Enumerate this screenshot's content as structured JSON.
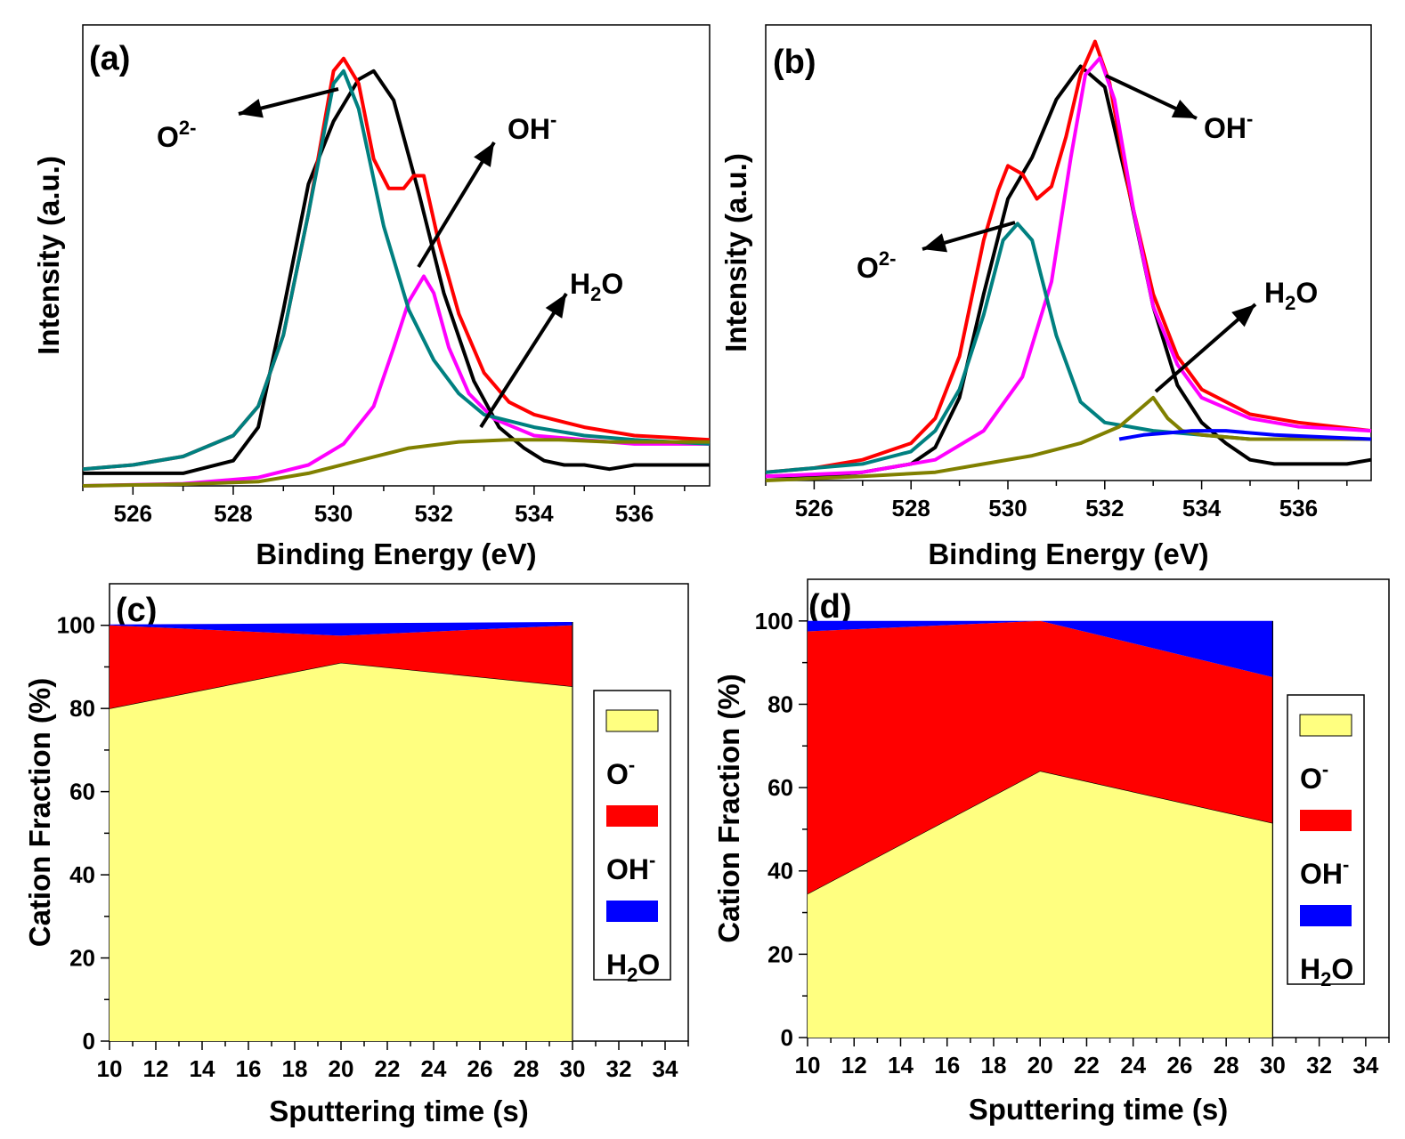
{
  "chart_data": [
    {
      "id": "a",
      "type": "line",
      "panel_label": "(a)",
      "xlabel": "Binding Energy (eV)",
      "ylabel": "Intensity (a.u.)",
      "xlim": [
        525,
        537.5
      ],
      "ylim": [
        0,
        1.1
      ],
      "x_ticks": [
        526,
        528,
        530,
        532,
        534,
        536
      ],
      "series": [
        {
          "color": "#000000",
          "x": [
            525,
            526,
            527,
            528,
            528.5,
            529,
            529.5,
            530,
            530.5,
            530.8,
            531.2,
            531.7,
            532.2,
            532.8,
            533.3,
            533.8,
            534.2,
            534.6,
            535,
            535.5,
            536,
            536.5,
            537,
            537.5
          ],
          "y": [
            0.03,
            0.03,
            0.03,
            0.06,
            0.14,
            0.42,
            0.72,
            0.87,
            0.97,
            0.99,
            0.92,
            0.7,
            0.46,
            0.25,
            0.14,
            0.09,
            0.06,
            0.05,
            0.05,
            0.04,
            0.05,
            0.05,
            0.05,
            0.05
          ]
        },
        {
          "color": "#ff0000",
          "x": [
            525,
            526,
            527,
            528,
            528.5,
            529,
            529.5,
            530,
            530.2,
            530.5,
            530.8,
            531.1,
            531.4,
            531.6,
            531.8,
            532.1,
            532.5,
            533,
            533.5,
            534,
            535,
            536,
            537.5
          ],
          "y": [
            0.04,
            0.05,
            0.07,
            0.12,
            0.19,
            0.36,
            0.65,
            0.99,
            1.02,
            0.96,
            0.78,
            0.71,
            0.71,
            0.74,
            0.74,
            0.58,
            0.41,
            0.27,
            0.2,
            0.17,
            0.14,
            0.12,
            0.11
          ]
        },
        {
          "color": "#ff00ff",
          "x": [
            525,
            527,
            528.5,
            529.5,
            530.2,
            530.8,
            531.2,
            531.5,
            531.8,
            532.0,
            532.3,
            532.7,
            533.2,
            534,
            535,
            536,
            537.5
          ],
          "y": [
            0,
            0.005,
            0.02,
            0.05,
            0.1,
            0.19,
            0.33,
            0.44,
            0.5,
            0.46,
            0.33,
            0.22,
            0.16,
            0.12,
            0.11,
            0.1,
            0.1
          ]
        },
        {
          "color": "#008080",
          "x": [
            525,
            526,
            527,
            528,
            528.5,
            529,
            529.5,
            530,
            530.2,
            530.5,
            531,
            531.5,
            532,
            532.5,
            533,
            534,
            535,
            536,
            537.5
          ],
          "y": [
            0.04,
            0.05,
            0.07,
            0.12,
            0.19,
            0.36,
            0.65,
            0.96,
            0.99,
            0.9,
            0.62,
            0.42,
            0.3,
            0.22,
            0.17,
            0.14,
            0.12,
            0.11,
            0.1
          ]
        },
        {
          "color": "#808000",
          "x": [
            525,
            527,
            528.5,
            529.5,
            530.5,
            531.5,
            532.5,
            533.5,
            534.5,
            535.5,
            537.5
          ],
          "y": [
            0,
            0.004,
            0.01,
            0.03,
            0.06,
            0.09,
            0.105,
            0.11,
            0.11,
            0.105,
            0.105
          ]
        }
      ],
      "annotations": [
        {
          "text": "O",
          "sup": "2-"
        },
        {
          "text": "OH",
          "sup": "-"
        },
        {
          "text": "H",
          "sub": "2",
          "tail": "O"
        }
      ]
    },
    {
      "id": "b",
      "type": "line",
      "panel_label": "(b)",
      "xlabel": "Binding Energy (eV)",
      "ylabel": "Intensity (a.u.)",
      "xlim": [
        525,
        537.5
      ],
      "ylim": [
        0,
        1.1
      ],
      "x_ticks": [
        526,
        528,
        530,
        532,
        534,
        536
      ],
      "series": [
        {
          "color": "#000000",
          "x": [
            525,
            526,
            527,
            528,
            528.5,
            529,
            529.5,
            530,
            530.5,
            531,
            531.5,
            532,
            532.5,
            533,
            533.5,
            534,
            534.5,
            535,
            535.5,
            536,
            536.5,
            537,
            537.5
          ],
          "y": [
            0.01,
            0.01,
            0.02,
            0.04,
            0.08,
            0.2,
            0.45,
            0.68,
            0.78,
            0.92,
            1.0,
            0.95,
            0.7,
            0.42,
            0.23,
            0.14,
            0.09,
            0.05,
            0.04,
            0.04,
            0.04,
            0.04,
            0.05
          ]
        },
        {
          "color": "#ff0000",
          "x": [
            525,
            526,
            527,
            528,
            528.5,
            529,
            529.5,
            529.8,
            530.0,
            530.3,
            530.6,
            530.9,
            531.2,
            531.5,
            531.8,
            532.1,
            532.5,
            533,
            533.5,
            534,
            535,
            536,
            537.5
          ],
          "y": [
            0.02,
            0.03,
            0.05,
            0.09,
            0.15,
            0.3,
            0.58,
            0.7,
            0.76,
            0.74,
            0.68,
            0.71,
            0.83,
            0.98,
            1.06,
            0.96,
            0.7,
            0.45,
            0.3,
            0.22,
            0.16,
            0.14,
            0.12
          ]
        },
        {
          "color": "#ff00ff",
          "x": [
            525,
            527,
            528.5,
            529.5,
            530.3,
            530.9,
            531.3,
            531.6,
            531.9,
            532.2,
            532.6,
            533,
            533.5,
            534,
            535,
            536,
            537.5
          ],
          "y": [
            0.01,
            0.02,
            0.05,
            0.12,
            0.25,
            0.48,
            0.78,
            0.98,
            1.02,
            0.92,
            0.65,
            0.42,
            0.28,
            0.2,
            0.15,
            0.13,
            0.12
          ]
        },
        {
          "color": "#008080",
          "x": [
            525,
            526,
            527,
            528,
            528.5,
            529,
            529.5,
            529.9,
            530.2,
            530.5,
            531,
            531.5,
            532,
            533,
            534,
            535,
            537.5
          ],
          "y": [
            0.02,
            0.03,
            0.04,
            0.07,
            0.12,
            0.22,
            0.4,
            0.58,
            0.62,
            0.58,
            0.35,
            0.19,
            0.14,
            0.12,
            0.11,
            0.1,
            0.1
          ]
        },
        {
          "color": "#808000",
          "x": [
            525,
            527,
            528.5,
            529.5,
            530.5,
            531.5,
            532.3,
            532.7,
            533.0,
            533.3,
            533.6,
            534,
            535,
            537.5
          ],
          "y": [
            0,
            0.01,
            0.02,
            0.04,
            0.06,
            0.09,
            0.13,
            0.17,
            0.2,
            0.15,
            0.12,
            0.11,
            0.1,
            0.1
          ]
        },
        {
          "color": "#0000ff",
          "x": [
            532.3,
            532.8,
            533.3,
            533.8,
            534.5,
            535.5,
            537.5
          ],
          "y": [
            0.1,
            0.11,
            0.115,
            0.12,
            0.12,
            0.11,
            0.1
          ]
        }
      ],
      "annotations": [
        {
          "text": "OH",
          "sup": "-"
        },
        {
          "text": "O",
          "sup": "2-"
        },
        {
          "text": "H",
          "sub": "2",
          "tail": "O"
        }
      ]
    },
    {
      "id": "c",
      "type": "area",
      "panel_label": "(c)",
      "xlabel": "Sputtering time (s)",
      "ylabel": "Cation Fraction (%)",
      "xlim": [
        10,
        35
      ],
      "ylim": [
        0,
        110
      ],
      "x_ticks": [
        10,
        12,
        14,
        16,
        18,
        20,
        22,
        24,
        26,
        28,
        30,
        32,
        34
      ],
      "y_ticks": [
        0,
        20,
        40,
        60,
        80,
        100
      ],
      "x": [
        10,
        20,
        30
      ],
      "series": [
        {
          "color": "#ffff80",
          "values": [
            80,
            91,
            85.3
          ]
        },
        {
          "color": "#ff0000",
          "values": [
            20,
            6.5,
            14.7
          ]
        },
        {
          "color": "#0000ff",
          "values": [
            0.2,
            3.0,
            0.8
          ]
        }
      ],
      "legend": [
        {
          "color": "#ffff80",
          "text": "O",
          "sup": "-"
        },
        {
          "color": "#ff0000",
          "text": "OH",
          "sup": "-"
        },
        {
          "color": "#0000ff",
          "text": "H",
          "sub": "2",
          "tail": "O"
        }
      ]
    },
    {
      "id": "d",
      "type": "area",
      "panel_label": "(d)",
      "xlabel": "Sputtering time (s)",
      "ylabel": "Cation Fraction (%)",
      "xlim": [
        10,
        35
      ],
      "ylim": [
        0,
        110
      ],
      "x_ticks": [
        10,
        12,
        14,
        16,
        18,
        20,
        22,
        24,
        26,
        28,
        30,
        32,
        34
      ],
      "y_ticks": [
        0,
        20,
        40,
        60,
        80,
        100
      ],
      "x": [
        10,
        20,
        30
      ],
      "series": [
        {
          "color": "#ffff80",
          "values": [
            34.5,
            64,
            51.5
          ]
        },
        {
          "color": "#ff0000",
          "values": [
            63,
            36,
            35
          ]
        },
        {
          "color": "#0000ff",
          "values": [
            2.5,
            0,
            13.5
          ]
        }
      ],
      "legend": [
        {
          "color": "#ffff80",
          "text": "O",
          "sup": "-"
        },
        {
          "color": "#ff0000",
          "text": "OH",
          "sup": "-"
        },
        {
          "color": "#0000ff",
          "text": "H",
          "sub": "2",
          "tail": "O"
        }
      ]
    }
  ]
}
